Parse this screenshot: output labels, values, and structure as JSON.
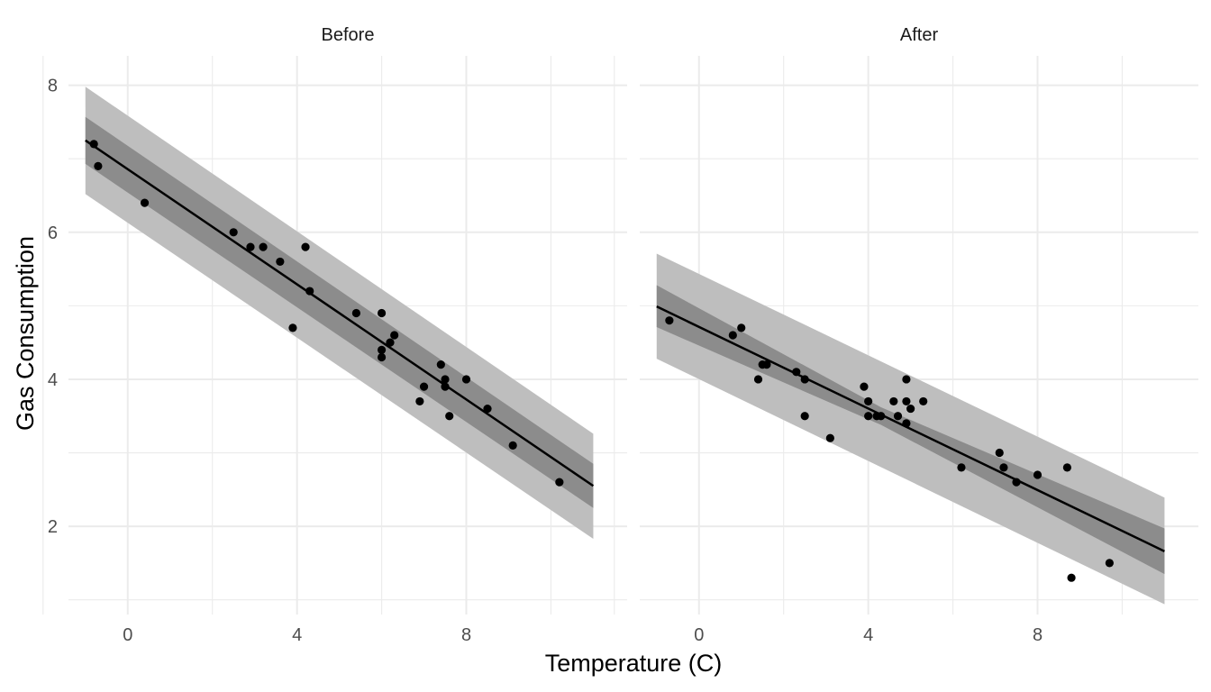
{
  "chart_data": {
    "type": "scatter",
    "xlabel": "Temperature (C)",
    "ylabel": "Gas Consumption",
    "xlim": [
      -1.4,
      11.8
    ],
    "ylim": [
      0.8,
      8.4
    ],
    "x_ticks": [
      0,
      4,
      8
    ],
    "y_ticks": [
      2,
      4,
      6,
      8
    ],
    "x_minor": [
      -2,
      2,
      6,
      10
    ],
    "y_minor": [
      1,
      3,
      5,
      7
    ],
    "grid": true,
    "colors": {
      "points": "#000000",
      "line": "#000000",
      "pred_band": "#bebebe",
      "conf_band": "#8c8c8c",
      "grid": "#ebebeb"
    },
    "panels": [
      {
        "label": "Before",
        "points": [
          [
            -0.8,
            7.2
          ],
          [
            -0.7,
            6.9
          ],
          [
            0.4,
            6.4
          ],
          [
            2.5,
            6.0
          ],
          [
            2.9,
            5.8
          ],
          [
            3.2,
            5.8
          ],
          [
            3.6,
            5.6
          ],
          [
            3.9,
            4.7
          ],
          [
            4.2,
            5.8
          ],
          [
            4.3,
            5.2
          ],
          [
            5.4,
            4.9
          ],
          [
            6.0,
            4.9
          ],
          [
            6.0,
            4.4
          ],
          [
            6.0,
            4.3
          ],
          [
            6.2,
            4.5
          ],
          [
            6.3,
            4.6
          ],
          [
            6.9,
            3.7
          ],
          [
            7.0,
            3.9
          ],
          [
            7.4,
            4.2
          ],
          [
            7.5,
            4.0
          ],
          [
            7.5,
            3.9
          ],
          [
            7.6,
            3.5
          ],
          [
            8.0,
            4.0
          ],
          [
            8.5,
            3.6
          ],
          [
            9.1,
            3.1
          ],
          [
            10.2,
            2.6
          ]
        ],
        "fit": {
          "x": [
            -1.0,
            11.0
          ],
          "y": [
            7.25,
            2.55
          ]
        },
        "conf_band": {
          "x": [
            -1.0,
            11.0
          ],
          "upper": [
            7.57,
            2.85
          ],
          "lower": [
            6.93,
            2.25
          ]
        },
        "pred_band": {
          "x": [
            -1.0,
            11.0
          ],
          "upper": [
            7.98,
            3.26
          ],
          "lower": [
            6.52,
            1.83
          ]
        }
      },
      {
        "label": "After",
        "points": [
          [
            -0.7,
            4.8
          ],
          [
            0.8,
            4.6
          ],
          [
            1.0,
            4.7
          ],
          [
            1.4,
            4.0
          ],
          [
            1.5,
            4.2
          ],
          [
            1.6,
            4.2
          ],
          [
            2.3,
            4.1
          ],
          [
            2.5,
            3.5
          ],
          [
            2.5,
            4.0
          ],
          [
            3.1,
            3.2
          ],
          [
            3.9,
            3.9
          ],
          [
            4.0,
            3.7
          ],
          [
            4.0,
            3.5
          ],
          [
            4.2,
            3.5
          ],
          [
            4.3,
            3.5
          ],
          [
            4.6,
            3.7
          ],
          [
            4.7,
            3.5
          ],
          [
            4.9,
            4.0
          ],
          [
            4.9,
            3.7
          ],
          [
            4.9,
            3.4
          ],
          [
            5.0,
            3.6
          ],
          [
            5.3,
            3.7
          ],
          [
            6.2,
            2.8
          ],
          [
            7.1,
            3.0
          ],
          [
            7.2,
            2.8
          ],
          [
            7.5,
            2.6
          ],
          [
            8.0,
            2.7
          ],
          [
            8.7,
            2.8
          ],
          [
            8.8,
            1.3
          ],
          [
            9.7,
            1.5
          ]
        ],
        "fit": {
          "x": [
            -1.0,
            11.0
          ],
          "y": [
            4.99,
            1.66
          ]
        },
        "conf_band": {
          "x": [
            -1.0,
            4.3,
            11.0
          ],
          "upper": [
            5.28,
            3.62,
            1.97
          ],
          "lower": [
            4.71,
            3.38,
            1.35
          ]
        },
        "pred_band": {
          "x": [
            -1.0,
            11.0
          ],
          "upper": [
            5.71,
            2.39
          ],
          "lower": [
            4.28,
            0.94
          ]
        }
      }
    ]
  }
}
